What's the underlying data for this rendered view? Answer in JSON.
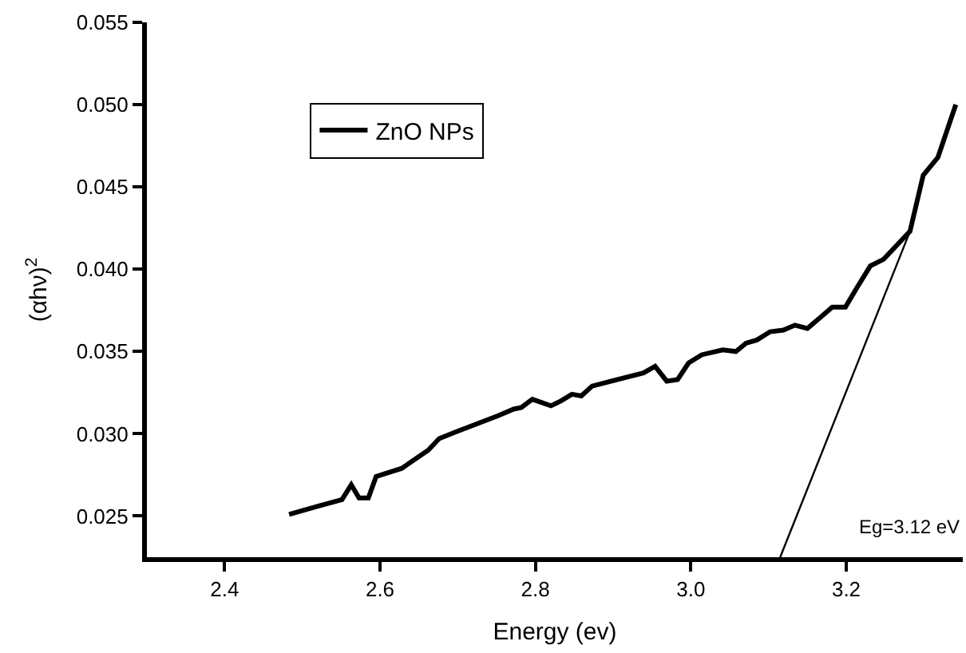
{
  "chart_data": {
    "type": "line",
    "xlabel": "Energy (ev)",
    "ylabel": "(αhν)$^{2}$",
    "xlim": [
      2.3,
      3.35
    ],
    "ylim": [
      0.0225,
      0.055
    ],
    "xticks": [
      2.4,
      2.6,
      2.8,
      {
        "value": 3.0,
        "label": "3.0"
      },
      3.2
    ],
    "yticks": [
      0.025,
      {
        "value": 0.03,
        "label": "0.030"
      },
      0.035,
      {
        "value": 0.04,
        "label": "0.040"
      },
      0.045,
      {
        "value": 0.05,
        "label": "0.050"
      },
      0.055
    ],
    "legend": "top left",
    "annotations": [
      "Eg=3.12 eV"
    ],
    "series": [
      {
        "name": "ZnO NPs",
        "color": "#000000",
        "x": [
          2.483,
          2.52,
          2.551,
          2.563,
          2.573,
          2.585,
          2.595,
          2.628,
          2.662,
          2.676,
          2.697,
          2.752,
          2.772,
          2.782,
          2.796,
          2.82,
          2.833,
          2.847,
          2.859,
          2.873,
          2.939,
          2.954,
          2.969,
          2.983,
          2.997,
          3.014,
          3.041,
          3.058,
          3.071,
          3.085,
          3.102,
          3.119,
          3.134,
          3.15,
          3.165,
          3.182,
          3.199,
          3.214,
          3.231,
          3.248,
          3.282,
          3.299,
          3.318,
          3.341
        ],
        "values": [
          0.0251,
          0.0256,
          0.026,
          0.0269,
          0.0261,
          0.0261,
          0.0274,
          0.0279,
          0.029,
          0.0297,
          0.0301,
          0.0311,
          0.0315,
          0.0316,
          0.0321,
          0.0317,
          0.032,
          0.0324,
          0.0323,
          0.0329,
          0.0337,
          0.0341,
          0.0332,
          0.0333,
          0.0343,
          0.0348,
          0.0351,
          0.035,
          0.0355,
          0.0357,
          0.0362,
          0.0363,
          0.0366,
          0.0364,
          0.037,
          0.0377,
          0.0377,
          0.0389,
          0.0402,
          0.0406,
          0.0423,
          0.0457,
          0.0468,
          0.05
        ]
      },
      {
        "color": "#000000",
        "x": [
          3.115,
          3.282
        ],
        "values": [
          0.0225,
          0.0423
        ]
      }
    ]
  }
}
